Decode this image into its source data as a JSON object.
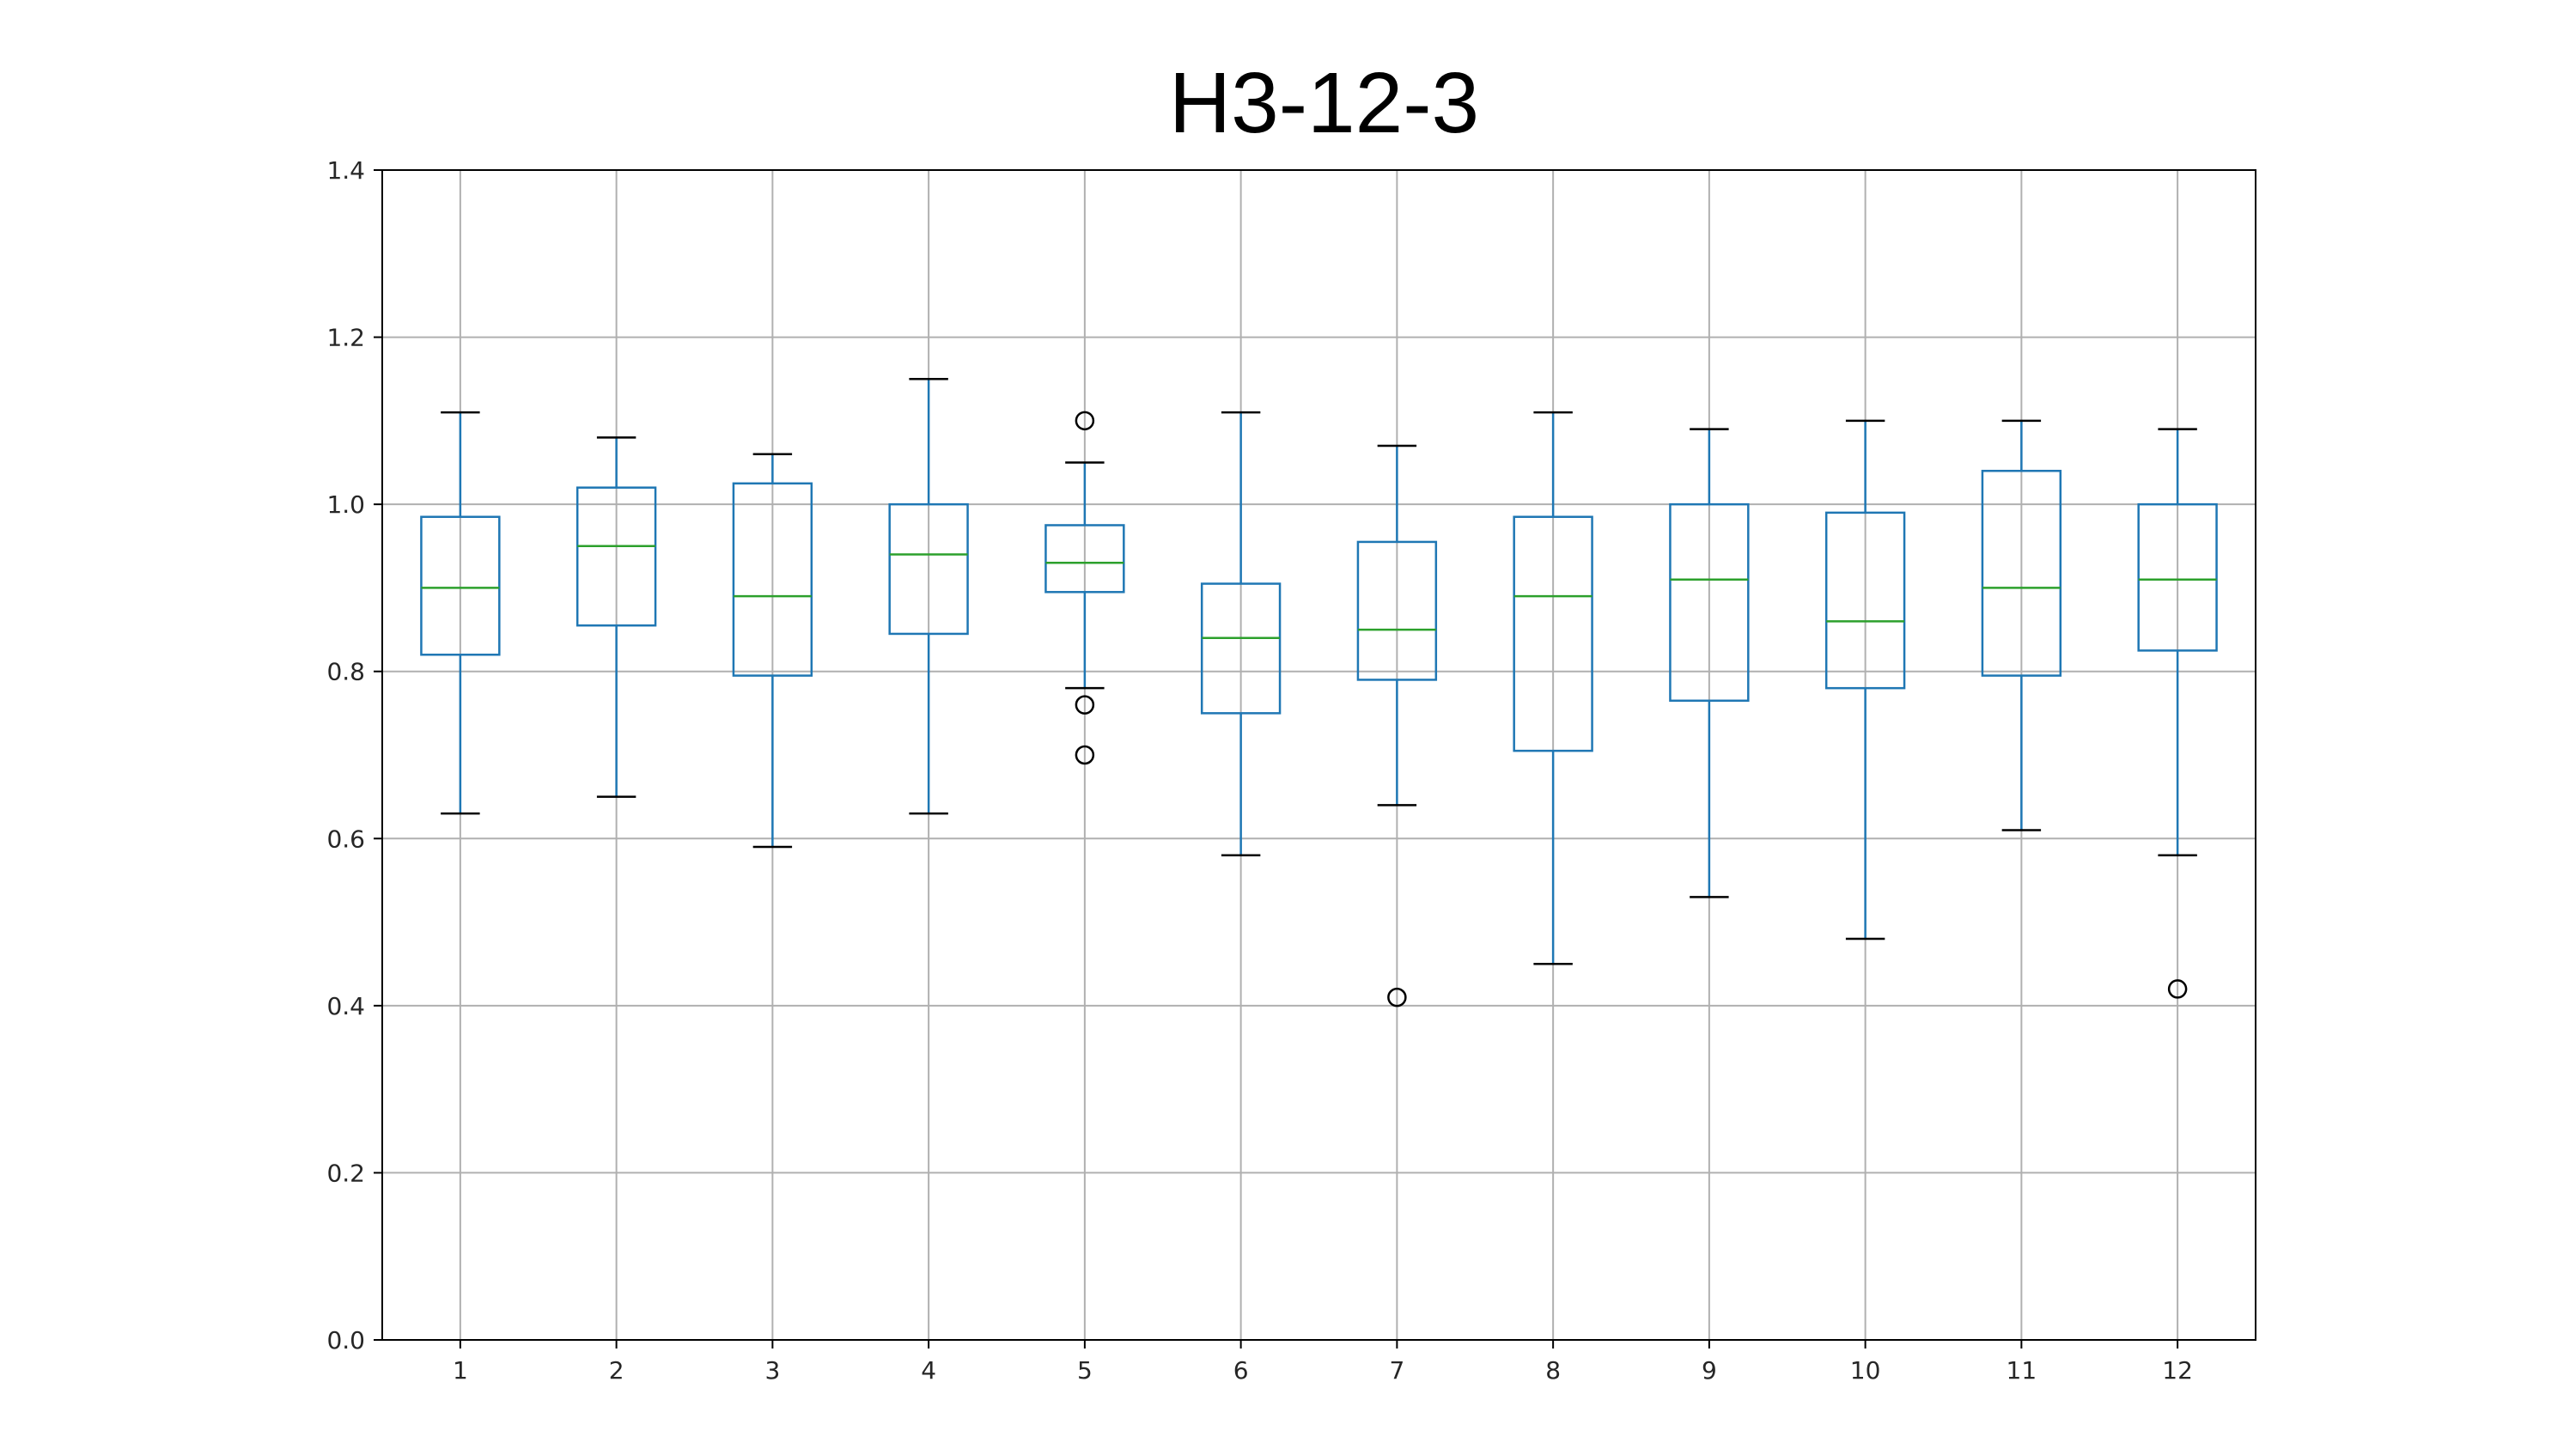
{
  "chart_data": {
    "type": "boxplot",
    "title": "H3-12-3",
    "xlabel": "",
    "ylabel": "",
    "categories": [
      "1",
      "2",
      "3",
      "4",
      "5",
      "6",
      "7",
      "8",
      "9",
      "10",
      "11",
      "12"
    ],
    "boxes": [
      {
        "whisker_low": 0.63,
        "q1": 0.82,
        "median": 0.9,
        "q3": 0.985,
        "whisker_high": 1.11,
        "outliers": []
      },
      {
        "whisker_low": 0.65,
        "q1": 0.855,
        "median": 0.95,
        "q3": 1.02,
        "whisker_high": 1.08,
        "outliers": []
      },
      {
        "whisker_low": 0.59,
        "q1": 0.795,
        "median": 0.89,
        "q3": 1.025,
        "whisker_high": 1.06,
        "outliers": []
      },
      {
        "whisker_low": 0.63,
        "q1": 0.845,
        "median": 0.94,
        "q3": 1.0,
        "whisker_high": 1.15,
        "outliers": []
      },
      {
        "whisker_low": 0.78,
        "q1": 0.895,
        "median": 0.93,
        "q3": 0.975,
        "whisker_high": 1.05,
        "outliers": [
          1.1,
          0.76,
          0.7
        ]
      },
      {
        "whisker_low": 0.58,
        "q1": 0.75,
        "median": 0.84,
        "q3": 0.905,
        "whisker_high": 1.11,
        "outliers": []
      },
      {
        "whisker_low": 0.64,
        "q1": 0.79,
        "median": 0.85,
        "q3": 0.955,
        "whisker_high": 1.07,
        "outliers": [
          0.41
        ]
      },
      {
        "whisker_low": 0.45,
        "q1": 0.705,
        "median": 0.89,
        "q3": 0.985,
        "whisker_high": 1.11,
        "outliers": []
      },
      {
        "whisker_low": 0.53,
        "q1": 0.765,
        "median": 0.91,
        "q3": 1.0,
        "whisker_high": 1.09,
        "outliers": []
      },
      {
        "whisker_low": 0.48,
        "q1": 0.78,
        "median": 0.86,
        "q3": 0.99,
        "whisker_high": 1.1,
        "outliers": []
      },
      {
        "whisker_low": 0.61,
        "q1": 0.795,
        "median": 0.9,
        "q3": 1.04,
        "whisker_high": 1.1,
        "outliers": []
      },
      {
        "whisker_low": 0.58,
        "q1": 0.825,
        "median": 0.91,
        "q3": 1.0,
        "whisker_high": 1.09,
        "outliers": [
          0.42
        ]
      }
    ],
    "ylim": [
      0.0,
      1.4
    ],
    "yticks": [
      "0.0",
      "0.2",
      "0.4",
      "0.6",
      "0.8",
      "1.0",
      "1.2",
      "1.4"
    ],
    "grid": true,
    "legend": "none",
    "colors": {
      "box": "#1f77b4",
      "median": "#2ca02c",
      "whisker": "#1f77b4",
      "cap": "#000000",
      "outlier": "#000000",
      "grid": "#b0b0b0",
      "axis": "#000000"
    }
  }
}
